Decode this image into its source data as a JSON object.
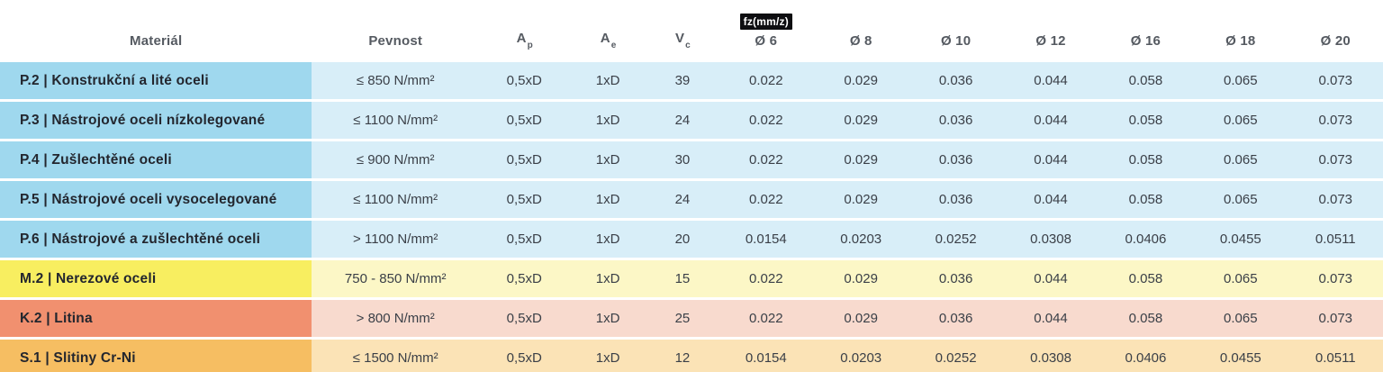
{
  "table": {
    "columns": {
      "material": "Materiál",
      "pevnost": "Pevnost",
      "ap": {
        "base": "A",
        "sub": "p"
      },
      "ae": {
        "base": "A",
        "sub": "e"
      },
      "vc": {
        "base": "V",
        "sub": "c"
      },
      "fz_unit_badge": "fz(mm/z)",
      "diameters": [
        "Ø 6",
        "Ø 8",
        "Ø 10",
        "Ø 12",
        "Ø 16",
        "Ø 18",
        "Ø 20"
      ]
    },
    "rows": [
      {
        "material": "P.2 | Konstrukční a lité oceli",
        "pevnost": "≤ 850 N/mm²",
        "ap": "0,5xD",
        "ae": "1xD",
        "vc": "39",
        "fz": [
          "0.022",
          "0.029",
          "0.036",
          "0.044",
          "0.058",
          "0.065",
          "0.073"
        ],
        "theme": "blue"
      },
      {
        "material": "P.3 | Nástrojové oceli nízkolegované",
        "pevnost": "≤ 1100 N/mm²",
        "ap": "0,5xD",
        "ae": "1xD",
        "vc": "24",
        "fz": [
          "0.022",
          "0.029",
          "0.036",
          "0.044",
          "0.058",
          "0.065",
          "0.073"
        ],
        "theme": "blue"
      },
      {
        "material": "P.4 | Zušlechtěné oceli",
        "pevnost": "≤ 900 N/mm²",
        "ap": "0,5xD",
        "ae": "1xD",
        "vc": "30",
        "fz": [
          "0.022",
          "0.029",
          "0.036",
          "0.044",
          "0.058",
          "0.065",
          "0.073"
        ],
        "theme": "blue"
      },
      {
        "material": "P.5 | Nástrojové oceli vysocelegované",
        "pevnost": "≤ 1100 N/mm²",
        "ap": "0,5xD",
        "ae": "1xD",
        "vc": "24",
        "fz": [
          "0.022",
          "0.029",
          "0.036",
          "0.044",
          "0.058",
          "0.065",
          "0.073"
        ],
        "theme": "blue"
      },
      {
        "material": "P.6 | Nástrojové a zušlechtěné oceli",
        "pevnost": "> 1100 N/mm²",
        "ap": "0,5xD",
        "ae": "1xD",
        "vc": "20",
        "fz": [
          "0.0154",
          "0.0203",
          "0.0252",
          "0.0308",
          "0.0406",
          "0.0455",
          "0.0511"
        ],
        "theme": "blue"
      },
      {
        "material": "M.2 | Nerezové oceli",
        "pevnost": "750 - 850 N/mm²",
        "ap": "0,5xD",
        "ae": "1xD",
        "vc": "15",
        "fz": [
          "0.022",
          "0.029",
          "0.036",
          "0.044",
          "0.058",
          "0.065",
          "0.073"
        ],
        "theme": "yellow"
      },
      {
        "material": "K.2 | Litina",
        "pevnost": "> 800 N/mm²",
        "ap": "0,5xD",
        "ae": "1xD",
        "vc": "25",
        "fz": [
          "0.022",
          "0.029",
          "0.036",
          "0.044",
          "0.058",
          "0.065",
          "0.073"
        ],
        "theme": "salmon"
      },
      {
        "material": "S.1 | Slitiny Cr-Ni",
        "pevnost": "≤ 1500 N/mm²",
        "ap": "0,5xD",
        "ae": "1xD",
        "vc": "12",
        "fz": [
          "0.0154",
          "0.0203",
          "0.0252",
          "0.0308",
          "0.0406",
          "0.0455",
          "0.0511"
        ],
        "theme": "orange"
      }
    ]
  },
  "colors": {
    "blue_strong": "#9FD8EE",
    "blue_light": "#D8EEF8",
    "yellow_strong": "#F8EE60",
    "yellow_light": "#FCF7C6",
    "salmon_strong": "#F1906F",
    "salmon_light": "#F8DACE",
    "orange_strong": "#F6BE62",
    "orange_light": "#FBE3B6",
    "badge_bg": "#0E0E11",
    "badge_text": "#FFFFFF",
    "header_text": "#555A61",
    "material_text": "#23262E",
    "data_text": "#3A3F47"
  },
  "chart_data": {
    "type": "table",
    "title": "fz(mm/z)",
    "columns": [
      "Materiál",
      "Pevnost",
      "Ap",
      "Ae",
      "Vc",
      "Ø 6",
      "Ø 8",
      "Ø 10",
      "Ø 12",
      "Ø 16",
      "Ø 18",
      "Ø 20"
    ],
    "rows": [
      [
        "P.2 | Konstrukční a lité oceli",
        "≤ 850 N/mm²",
        "0,5xD",
        "1xD",
        39,
        0.022,
        0.029,
        0.036,
        0.044,
        0.058,
        0.065,
        0.073
      ],
      [
        "P.3 | Nástrojové oceli nízkolegované",
        "≤ 1100 N/mm²",
        "0,5xD",
        "1xD",
        24,
        0.022,
        0.029,
        0.036,
        0.044,
        0.058,
        0.065,
        0.073
      ],
      [
        "P.4 | Zušlechtěné oceli",
        "≤ 900 N/mm²",
        "0,5xD",
        "1xD",
        30,
        0.022,
        0.029,
        0.036,
        0.044,
        0.058,
        0.065,
        0.073
      ],
      [
        "P.5 | Nástrojové oceli vysocelegované",
        "≤ 1100 N/mm²",
        "0,5xD",
        "1xD",
        24,
        0.022,
        0.029,
        0.036,
        0.044,
        0.058,
        0.065,
        0.073
      ],
      [
        "P.6 | Nástrojové a zušlechtěné oceli",
        "> 1100 N/mm²",
        "0,5xD",
        "1xD",
        20,
        0.0154,
        0.0203,
        0.0252,
        0.0308,
        0.0406,
        0.0455,
        0.0511
      ],
      [
        "M.2 | Nerezové oceli",
        "750 - 850 N/mm²",
        "0,5xD",
        "1xD",
        15,
        0.022,
        0.029,
        0.036,
        0.044,
        0.058,
        0.065,
        0.073
      ],
      [
        "K.2 | Litina",
        "> 800 N/mm²",
        "0,5xD",
        "1xD",
        25,
        0.022,
        0.029,
        0.036,
        0.044,
        0.058,
        0.065,
        0.073
      ],
      [
        "S.1 | Slitiny Cr-Ni",
        "≤ 1500 N/mm²",
        "0,5xD",
        "1xD",
        12,
        0.0154,
        0.0203,
        0.0252,
        0.0308,
        0.0406,
        0.0455,
        0.0511
      ]
    ]
  }
}
